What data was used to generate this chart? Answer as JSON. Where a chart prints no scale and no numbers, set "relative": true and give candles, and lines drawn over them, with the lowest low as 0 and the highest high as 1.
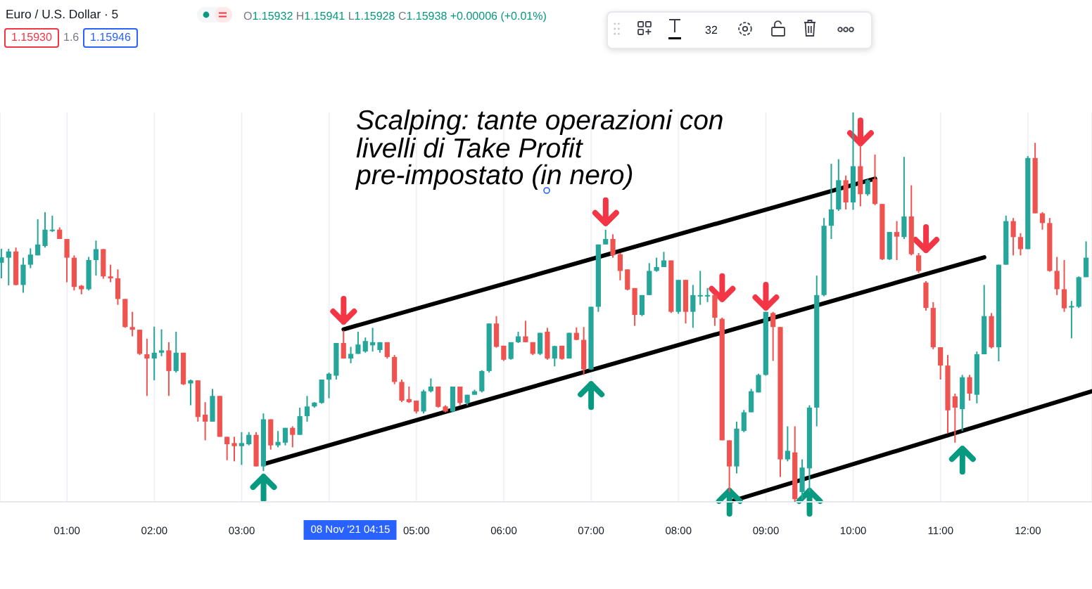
{
  "chart_data": {
    "type": "candlestick",
    "title": "Euro / U.S. Dollar · 5",
    "relative": true,
    "grid": "x",
    "xlim": [
      "2021-11-08T00:14",
      "2021-11-08T12:44"
    ],
    "xticks": [
      {
        "value": "2021-11-08T01:00",
        "label": "01:00"
      },
      {
        "value": "2021-11-08T02:00",
        "label": "02:00"
      },
      {
        "value": "2021-11-08T03:00",
        "label": "03:00"
      },
      {
        "value": "2021-11-08T04:00",
        "label": null
      },
      {
        "value": "2021-11-08T05:00",
        "label": "05:00"
      },
      {
        "value": "2021-11-08T06:00",
        "label": "06:00"
      },
      {
        "value": "2021-11-08T07:00",
        "label": "07:00"
      },
      {
        "value": "2021-11-08T08:00",
        "label": "08:00"
      },
      {
        "value": "2021-11-08T09:00",
        "label": "09:00"
      },
      {
        "value": "2021-11-08T10:00",
        "label": "10:00"
      },
      {
        "value": "2021-11-08T11:00",
        "label": "11:00"
      },
      {
        "value": "2021-11-08T12:00",
        "label": "12:00"
      }
    ],
    "x": [
      "2021-11-08T00:15",
      "2021-11-08T00:20",
      "2021-11-08T00:25",
      "2021-11-08T00:30",
      "2021-11-08T00:35",
      "2021-11-08T00:40",
      "2021-11-08T00:45",
      "2021-11-08T00:50",
      "2021-11-08T00:55",
      "2021-11-08T01:00",
      "2021-11-08T01:05",
      "2021-11-08T01:10",
      "2021-11-08T01:15",
      "2021-11-08T01:20",
      "2021-11-08T01:25",
      "2021-11-08T01:30",
      "2021-11-08T01:35",
      "2021-11-08T01:40",
      "2021-11-08T01:45",
      "2021-11-08T01:50",
      "2021-11-08T01:55",
      "2021-11-08T02:00",
      "2021-11-08T02:05",
      "2021-11-08T02:10",
      "2021-11-08T02:15",
      "2021-11-08T02:20",
      "2021-11-08T02:25",
      "2021-11-08T02:30",
      "2021-11-08T02:35",
      "2021-11-08T02:40",
      "2021-11-08T02:45",
      "2021-11-08T02:50",
      "2021-11-08T02:55",
      "2021-11-08T03:00",
      "2021-11-08T03:05",
      "2021-11-08T03:10",
      "2021-11-08T03:15",
      "2021-11-08T03:20",
      "2021-11-08T03:25",
      "2021-11-08T03:30",
      "2021-11-08T03:35",
      "2021-11-08T03:40",
      "2021-11-08T03:45",
      "2021-11-08T03:50",
      "2021-11-08T03:55",
      "2021-11-08T04:00",
      "2021-11-08T04:05",
      "2021-11-08T04:10",
      "2021-11-08T04:15",
      "2021-11-08T04:20",
      "2021-11-08T04:25",
      "2021-11-08T04:30",
      "2021-11-08T04:35",
      "2021-11-08T04:40",
      "2021-11-08T04:45",
      "2021-11-08T04:50",
      "2021-11-08T04:55",
      "2021-11-08T05:00",
      "2021-11-08T05:05",
      "2021-11-08T05:10",
      "2021-11-08T05:15",
      "2021-11-08T05:20",
      "2021-11-08T05:25",
      "2021-11-08T05:30",
      "2021-11-08T05:35",
      "2021-11-08T05:40",
      "2021-11-08T05:45",
      "2021-11-08T05:50",
      "2021-11-08T05:55",
      "2021-11-08T06:00",
      "2021-11-08T06:05",
      "2021-11-08T06:10",
      "2021-11-08T06:15",
      "2021-11-08T06:20",
      "2021-11-08T06:25",
      "2021-11-08T06:30",
      "2021-11-08T06:35",
      "2021-11-08T06:40",
      "2021-11-08T06:45",
      "2021-11-08T06:50",
      "2021-11-08T06:55",
      "2021-11-08T07:00",
      "2021-11-08T07:05",
      "2021-11-08T07:10",
      "2021-11-08T07:15",
      "2021-11-08T07:20",
      "2021-11-08T07:25",
      "2021-11-08T07:30",
      "2021-11-08T07:35",
      "2021-11-08T07:40",
      "2021-11-08T07:45",
      "2021-11-08T07:50",
      "2021-11-08T07:55",
      "2021-11-08T08:00",
      "2021-11-08T08:05",
      "2021-11-08T08:10",
      "2021-11-08T08:15",
      "2021-11-08T08:20",
      "2021-11-08T08:25",
      "2021-11-08T08:30",
      "2021-11-08T08:35",
      "2021-11-08T08:40",
      "2021-11-08T08:45",
      "2021-11-08T08:50",
      "2021-11-08T08:55",
      "2021-11-08T09:00",
      "2021-11-08T09:05",
      "2021-11-08T09:10",
      "2021-11-08T09:15",
      "2021-11-08T09:20",
      "2021-11-08T09:25",
      "2021-11-08T09:30",
      "2021-11-08T09:35",
      "2021-11-08T09:40",
      "2021-11-08T09:45",
      "2021-11-08T09:50",
      "2021-11-08T09:55",
      "2021-11-08T10:00",
      "2021-11-08T10:05",
      "2021-11-08T10:10",
      "2021-11-08T10:15",
      "2021-11-08T10:20",
      "2021-11-08T10:25",
      "2021-11-08T10:30",
      "2021-11-08T10:35",
      "2021-11-08T10:40",
      "2021-11-08T10:45",
      "2021-11-08T10:50",
      "2021-11-08T10:55",
      "2021-11-08T11:00",
      "2021-11-08T11:05",
      "2021-11-08T11:10",
      "2021-11-08T11:15",
      "2021-11-08T11:20",
      "2021-11-08T11:25",
      "2021-11-08T11:30",
      "2021-11-08T11:35",
      "2021-11-08T11:40",
      "2021-11-08T11:45",
      "2021-11-08T11:50",
      "2021-11-08T11:55",
      "2021-11-08T12:00",
      "2021-11-08T12:05",
      "2021-11-08T12:10",
      "2021-11-08T12:15",
      "2021-11-08T12:20",
      "2021-11-08T12:25",
      "2021-11-08T12:30",
      "2021-11-08T12:35",
      "2021-11-08T12:40"
    ],
    "ohlc": [
      [
        0.614,
        0.65,
        0.574,
        0.628
      ],
      [
        0.627,
        0.65,
        0.556,
        0.643
      ],
      [
        0.643,
        0.653,
        0.556,
        0.557
      ],
      [
        0.557,
        0.627,
        0.537,
        0.609
      ],
      [
        0.609,
        0.651,
        0.6,
        0.635
      ],
      [
        0.633,
        0.726,
        0.633,
        0.661
      ],
      [
        0.657,
        0.744,
        0.653,
        0.699
      ],
      [
        0.696,
        0.735,
        0.693,
        0.699
      ],
      [
        0.699,
        0.705,
        0.675,
        0.675
      ],
      [
        0.675,
        0.675,
        0.564,
        0.627
      ],
      [
        0.627,
        0.633,
        0.543,
        0.552
      ],
      [
        0.555,
        0.557,
        0.533,
        0.546
      ],
      [
        0.546,
        0.629,
        0.543,
        0.621
      ],
      [
        0.621,
        0.671,
        0.581,
        0.649
      ],
      [
        0.649,
        0.649,
        0.573,
        0.579
      ],
      [
        0.579,
        0.609,
        0.564,
        0.574
      ],
      [
        0.574,
        0.597,
        0.506,
        0.521
      ],
      [
        0.521,
        0.521,
        0.447,
        0.449
      ],
      [
        0.449,
        0.488,
        0.425,
        0.442
      ],
      [
        0.442,
        0.442,
        0.377,
        0.38
      ],
      [
        0.379,
        0.419,
        0.272,
        0.368
      ],
      [
        0.368,
        0.45,
        0.312,
        0.383
      ],
      [
        0.383,
        0.443,
        0.374,
        0.389
      ],
      [
        0.389,
        0.41,
        0.272,
        0.336
      ],
      [
        0.336,
        0.437,
        0.332,
        0.383
      ],
      [
        0.383,
        0.383,
        0.3,
        0.302
      ],
      [
        0.304,
        0.314,
        0.248,
        0.312
      ],
      [
        0.312,
        0.312,
        0.206,
        0.218
      ],
      [
        0.224,
        0.256,
        0.158,
        0.206
      ],
      [
        0.206,
        0.29,
        0.206,
        0.272
      ],
      [
        0.272,
        0.272,
        0.167,
        0.167
      ],
      [
        0.167,
        0.167,
        0.107,
        0.148
      ],
      [
        0.151,
        0.167,
        0.104,
        0.143
      ],
      [
        0.143,
        0.179,
        0.095,
        0.151
      ],
      [
        0.148,
        0.179,
        0.145,
        0.172
      ],
      [
        0.172,
        0.179,
        0.091,
        0.091
      ],
      [
        0.091,
        0.227,
        0.079,
        0.212
      ],
      [
        0.212,
        0.212,
        0.134,
        0.145
      ],
      [
        0.145,
        0.182,
        0.14,
        0.154
      ],
      [
        0.152,
        0.19,
        0.145,
        0.19
      ],
      [
        0.19,
        0.194,
        0.14,
        0.172
      ],
      [
        0.172,
        0.242,
        0.172,
        0.22
      ],
      [
        0.22,
        0.272,
        0.206,
        0.245
      ],
      [
        0.245,
        0.256,
        0.242,
        0.255
      ],
      [
        0.254,
        0.314,
        0.252,
        0.314
      ],
      [
        0.314,
        0.332,
        0.266,
        0.329
      ],
      [
        0.324,
        0.408,
        0.314,
        0.408
      ],
      [
        0.408,
        0.44,
        0.368,
        0.368
      ],
      [
        0.368,
        0.398,
        0.356,
        0.38
      ],
      [
        0.38,
        0.437,
        0.38,
        0.404
      ],
      [
        0.386,
        0.422,
        0.383,
        0.413
      ],
      [
        0.402,
        0.447,
        0.386,
        0.41
      ],
      [
        0.39,
        0.41,
        0.383,
        0.41
      ],
      [
        0.41,
        0.41,
        0.368,
        0.372
      ],
      [
        0.372,
        0.377,
        0.302,
        0.308
      ],
      [
        0.308,
        0.314,
        0.256,
        0.26
      ],
      [
        0.264,
        0.296,
        0.254,
        0.256
      ],
      [
        0.26,
        0.26,
        0.227,
        0.232
      ],
      [
        0.232,
        0.288,
        0.227,
        0.284
      ],
      [
        0.284,
        0.317,
        0.281,
        0.296
      ],
      [
        0.296,
        0.296,
        0.242,
        0.244
      ],
      [
        0.245,
        0.248,
        0.23,
        0.232
      ],
      [
        0.232,
        0.296,
        0.23,
        0.296
      ],
      [
        0.296,
        0.296,
        0.248,
        0.254
      ],
      [
        0.254,
        0.275,
        0.248,
        0.275
      ],
      [
        0.275,
        0.288,
        0.275,
        0.284
      ],
      [
        0.284,
        0.338,
        0.281,
        0.336
      ],
      [
        0.336,
        0.458,
        0.332,
        0.458
      ],
      [
        0.458,
        0.477,
        0.396,
        0.398
      ],
      [
        0.401,
        0.401,
        0.362,
        0.365
      ],
      [
        0.367,
        0.41,
        0.365,
        0.41
      ],
      [
        0.41,
        0.437,
        0.408,
        0.425
      ],
      [
        0.425,
        0.465,
        0.41,
        0.41
      ],
      [
        0.41,
        0.41,
        0.377,
        0.38
      ],
      [
        0.38,
        0.434,
        0.377,
        0.434
      ],
      [
        0.437,
        0.447,
        0.365,
        0.368
      ],
      [
        0.368,
        0.401,
        0.348,
        0.4
      ],
      [
        0.401,
        0.401,
        0.365,
        0.367
      ],
      [
        0.368,
        0.434,
        0.368,
        0.434
      ],
      [
        0.434,
        0.448,
        0.415,
        0.416
      ],
      [
        0.416,
        0.449,
        0.326,
        0.34
      ],
      [
        0.34,
        0.501,
        0.339,
        0.501
      ],
      [
        0.501,
        0.661,
        0.488,
        0.661
      ],
      [
        0.661,
        0.699,
        0.661,
        0.675
      ],
      [
        0.675,
        0.687,
        0.627,
        0.633
      ],
      [
        0.636,
        0.639,
        0.569,
        0.593
      ],
      [
        0.597,
        0.597,
        0.543,
        0.545
      ],
      [
        0.549,
        0.549,
        0.452,
        0.48
      ],
      [
        0.48,
        0.531,
        0.477,
        0.531
      ],
      [
        0.531,
        0.613,
        0.531,
        0.593
      ],
      [
        0.593,
        0.627,
        0.591,
        0.603
      ],
      [
        0.603,
        0.642,
        0.603,
        0.62
      ],
      [
        0.62,
        0.62,
        0.485,
        0.488
      ],
      [
        0.488,
        0.57,
        0.483,
        0.57
      ],
      [
        0.57,
        0.57,
        0.458,
        0.488
      ],
      [
        0.488,
        0.557,
        0.447,
        0.531
      ],
      [
        0.528,
        0.593,
        0.506,
        0.531
      ],
      [
        0.528,
        0.549,
        0.513,
        0.531
      ],
      [
        0.531,
        0.531,
        0.452,
        0.473
      ],
      [
        0.47,
        0.473,
        0.158,
        0.158
      ],
      [
        0.158,
        0.158,
        0.025,
        0.091
      ],
      [
        0.091,
        0.206,
        0.073,
        0.188
      ],
      [
        0.182,
        0.236,
        0.179,
        0.23
      ],
      [
        0.23,
        0.29,
        0.23,
        0.284
      ],
      [
        0.281,
        0.329,
        0.281,
        0.326
      ],
      [
        0.326,
        0.488,
        0.324,
        0.488
      ],
      [
        0.485,
        0.488,
        0.362,
        0.449
      ],
      [
        0.449,
        0.449,
        0.064,
        0.109
      ],
      [
        0.109,
        0.194,
        0.104,
        0.131
      ],
      [
        0.127,
        0.194,
        0,
        0.007
      ],
      [
        0.025,
        0.109,
        0.007,
        0.088
      ],
      [
        0.086,
        0.248,
        0.025,
        0.242
      ],
      [
        0.242,
        0.581,
        0.194,
        0.531
      ],
      [
        0.531,
        0.729,
        0.528,
        0.709
      ],
      [
        0.709,
        0.868,
        0.675,
        0.751
      ],
      [
        0.751,
        0.88,
        0.747,
        0.826
      ],
      [
        0.826,
        0.838,
        0.751,
        0.769
      ],
      [
        0.769,
        1,
        0.75,
        0.862
      ],
      [
        0.862,
        0.916,
        0.759,
        0.79
      ],
      [
        0.79,
        0.829,
        0.786,
        0.826
      ],
      [
        0.829,
        0.892,
        0.762,
        0.765
      ],
      [
        0.765,
        0.765,
        0.621,
        0.623
      ],
      [
        0.623,
        0.693,
        0.621,
        0.693
      ],
      [
        0.693,
        0.721,
        0.621,
        0.681
      ],
      [
        0.68,
        0.886,
        0.675,
        0.733
      ],
      [
        0.733,
        0.813,
        0.633,
        0.636
      ],
      [
        0.633,
        0.639,
        0.588,
        0.593
      ],
      [
        0.563,
        0.567,
        0.491,
        0.498
      ],
      [
        0.498,
        0.513,
        0.392,
        0.397
      ],
      [
        0.397,
        0.397,
        0.314,
        0.35
      ],
      [
        0.35,
        0.377,
        0.176,
        0.235
      ],
      [
        0.271,
        0.278,
        0.152,
        0.242
      ],
      [
        0.238,
        0.326,
        0.182,
        0.32
      ],
      [
        0.32,
        0.326,
        0.26,
        0.278
      ],
      [
        0.275,
        0.386,
        0.253,
        0.379
      ],
      [
        0.379,
        0.557,
        0.379,
        0.477
      ],
      [
        0.477,
        0.485,
        0.394,
        0.397
      ],
      [
        0.397,
        0.609,
        0.361,
        0.609
      ],
      [
        0.609,
        0.735,
        0.609,
        0.721
      ],
      [
        0.721,
        0.729,
        0.633,
        0.68
      ],
      [
        0.68,
        0.69,
        0.633,
        0.649
      ],
      [
        0.649,
        0.888,
        0.649,
        0.883
      ],
      [
        0.883,
        0.922,
        0.741,
        0.741
      ],
      [
        0.741,
        0.744,
        0.699,
        0.716
      ],
      [
        0.716,
        0.729,
        0.591,
        0.593
      ],
      [
        0.593,
        0.629,
        0.531,
        0.546
      ],
      [
        0.546,
        0.621,
        0.488,
        0.497
      ],
      [
        0.499,
        0.516,
        0.42,
        0.503
      ],
      [
        0.501,
        0.579,
        0.498,
        0.577
      ],
      [
        0.577,
        0.669,
        0.577,
        0.627
      ]
    ],
    "colors": [
      "#26a69a",
      "#26a69a",
      "#ef5350",
      "#26a69a",
      "#26a69a",
      "#26a69a",
      "#26a69a",
      "#26a69a",
      "#ef5350",
      "#ef5350",
      "#ef5350",
      "#ef5350",
      "#26a69a",
      "#26a69a",
      "#ef5350",
      "#ef5350",
      "#ef5350",
      "#ef5350",
      "#ef5350",
      "#ef5350",
      "#ef5350",
      "#26a69a",
      "#26a69a",
      "#ef5350",
      "#26a69a",
      "#ef5350",
      "#26a69a",
      "#ef5350",
      "#ef5350",
      "#26a69a",
      "#ef5350",
      "#ef5350",
      "#ef5350",
      "#26a69a",
      "#26a69a",
      "#ef5350",
      "#26a69a",
      "#ef5350",
      "#26a69a",
      "#26a69a",
      "#ef5350",
      "#26a69a",
      "#26a69a",
      "#26a69a",
      "#26a69a",
      "#26a69a",
      "#26a69a",
      "#ef5350",
      "#26a69a",
      "#26a69a",
      "#26a69a",
      "#26a69a",
      "#26a69a",
      "#ef5350",
      "#ef5350",
      "#ef5350",
      "#ef5350",
      "#ef5350",
      "#26a69a",
      "#26a69a",
      "#ef5350",
      "#ef5350",
      "#26a69a",
      "#ef5350",
      "#26a69a",
      "#26a69a",
      "#26a69a",
      "#26a69a",
      "#ef5350",
      "#ef5350",
      "#26a69a",
      "#26a69a",
      "#ef5350",
      "#ef5350",
      "#26a69a",
      "#ef5350",
      "#26a69a",
      "#ef5350",
      "#26a69a",
      "#ef5350",
      "#ef5350",
      "#26a69a",
      "#26a69a",
      "#26a69a",
      "#ef5350",
      "#ef5350",
      "#ef5350",
      "#ef5350",
      "#26a69a",
      "#26a69a",
      "#26a69a",
      "#26a69a",
      "#ef5350",
      "#26a69a",
      "#ef5350",
      "#26a69a",
      "#26a69a",
      "#26a69a",
      "#ef5350",
      "#ef5350",
      "#ef5350",
      "#26a69a",
      "#26a69a",
      "#26a69a",
      "#26a69a",
      "#26a69a",
      "#ef5350",
      "#ef5350",
      "#26a69a",
      "#ef5350",
      "#26a69a",
      "#26a69a",
      "#26a69a",
      "#26a69a",
      "#26a69a",
      "#26a69a",
      "#ef5350",
      "#26a69a",
      "#ef5350",
      "#26a69a",
      "#ef5350",
      "#ef5350",
      "#26a69a",
      "#ef5350",
      "#26a69a",
      "#ef5350",
      "#ef5350",
      "#ef5350",
      "#ef5350",
      "#ef5350",
      "#ef5350",
      "#ef5350",
      "#26a69a",
      "#ef5350",
      "#26a69a",
      "#26a69a",
      "#ef5350",
      "#26a69a",
      "#26a69a",
      "#ef5350",
      "#ef5350",
      "#26a69a",
      "#ef5350",
      "#ef5350",
      "#ef5350",
      "#ef5350",
      "#ef5350",
      "#26a69a",
      "#26a69a",
      "#26a69a"
    ],
    "series": [
      {
        "type": "line",
        "color": "#000000",
        "x": [
          "2021-11-08T03:15",
          "2021-11-08T11:30"
        ],
        "values": [
          0.097,
          0.628
        ]
      },
      {
        "type": "line",
        "color": "#000000",
        "x": [
          "2021-11-08T04:10",
          "2021-11-08T10:15"
        ],
        "values": [
          0.443,
          0.83
        ]
      },
      {
        "type": "line",
        "color": "#000000",
        "x": [
          "2021-11-08T08:35",
          "2021-11-08T12:44"
        ],
        "values": [
          0,
          0.284
        ]
      },
      {
        "type": "scatter",
        "color": "#f23645",
        "x": [
          "2021-11-08T04:10",
          "2021-11-08T07:10",
          "2021-11-08T08:30",
          "2021-11-08T09:00",
          "2021-11-08T10:05",
          "2021-11-08T10:50"
        ],
        "values": [
          0.491,
          0.744,
          0.549,
          0.527,
          0.949,
          0.675
        ]
      },
      {
        "type": "scatter",
        "color": "#089981",
        "x": [
          "2021-11-08T03:15",
          "2021-11-08T07:00",
          "2021-11-08T08:35",
          "2021-11-08T09:30",
          "2021-11-08T11:15"
        ],
        "values": [
          0.036,
          0.274,
          0,
          0,
          0.108
        ]
      }
    ],
    "annotations": [
      "Scalping: tante operazioni con\nlivelli di Take Profit\npre-impostato (in nero)",
      "O1.15932 H1.15941 L1.15928 C1.15938 +0.00006 (+0.01%)",
      "1.15930",
      "1.6",
      "1.15946",
      "32",
      "08 Nov '21 04:15"
    ]
  }
}
